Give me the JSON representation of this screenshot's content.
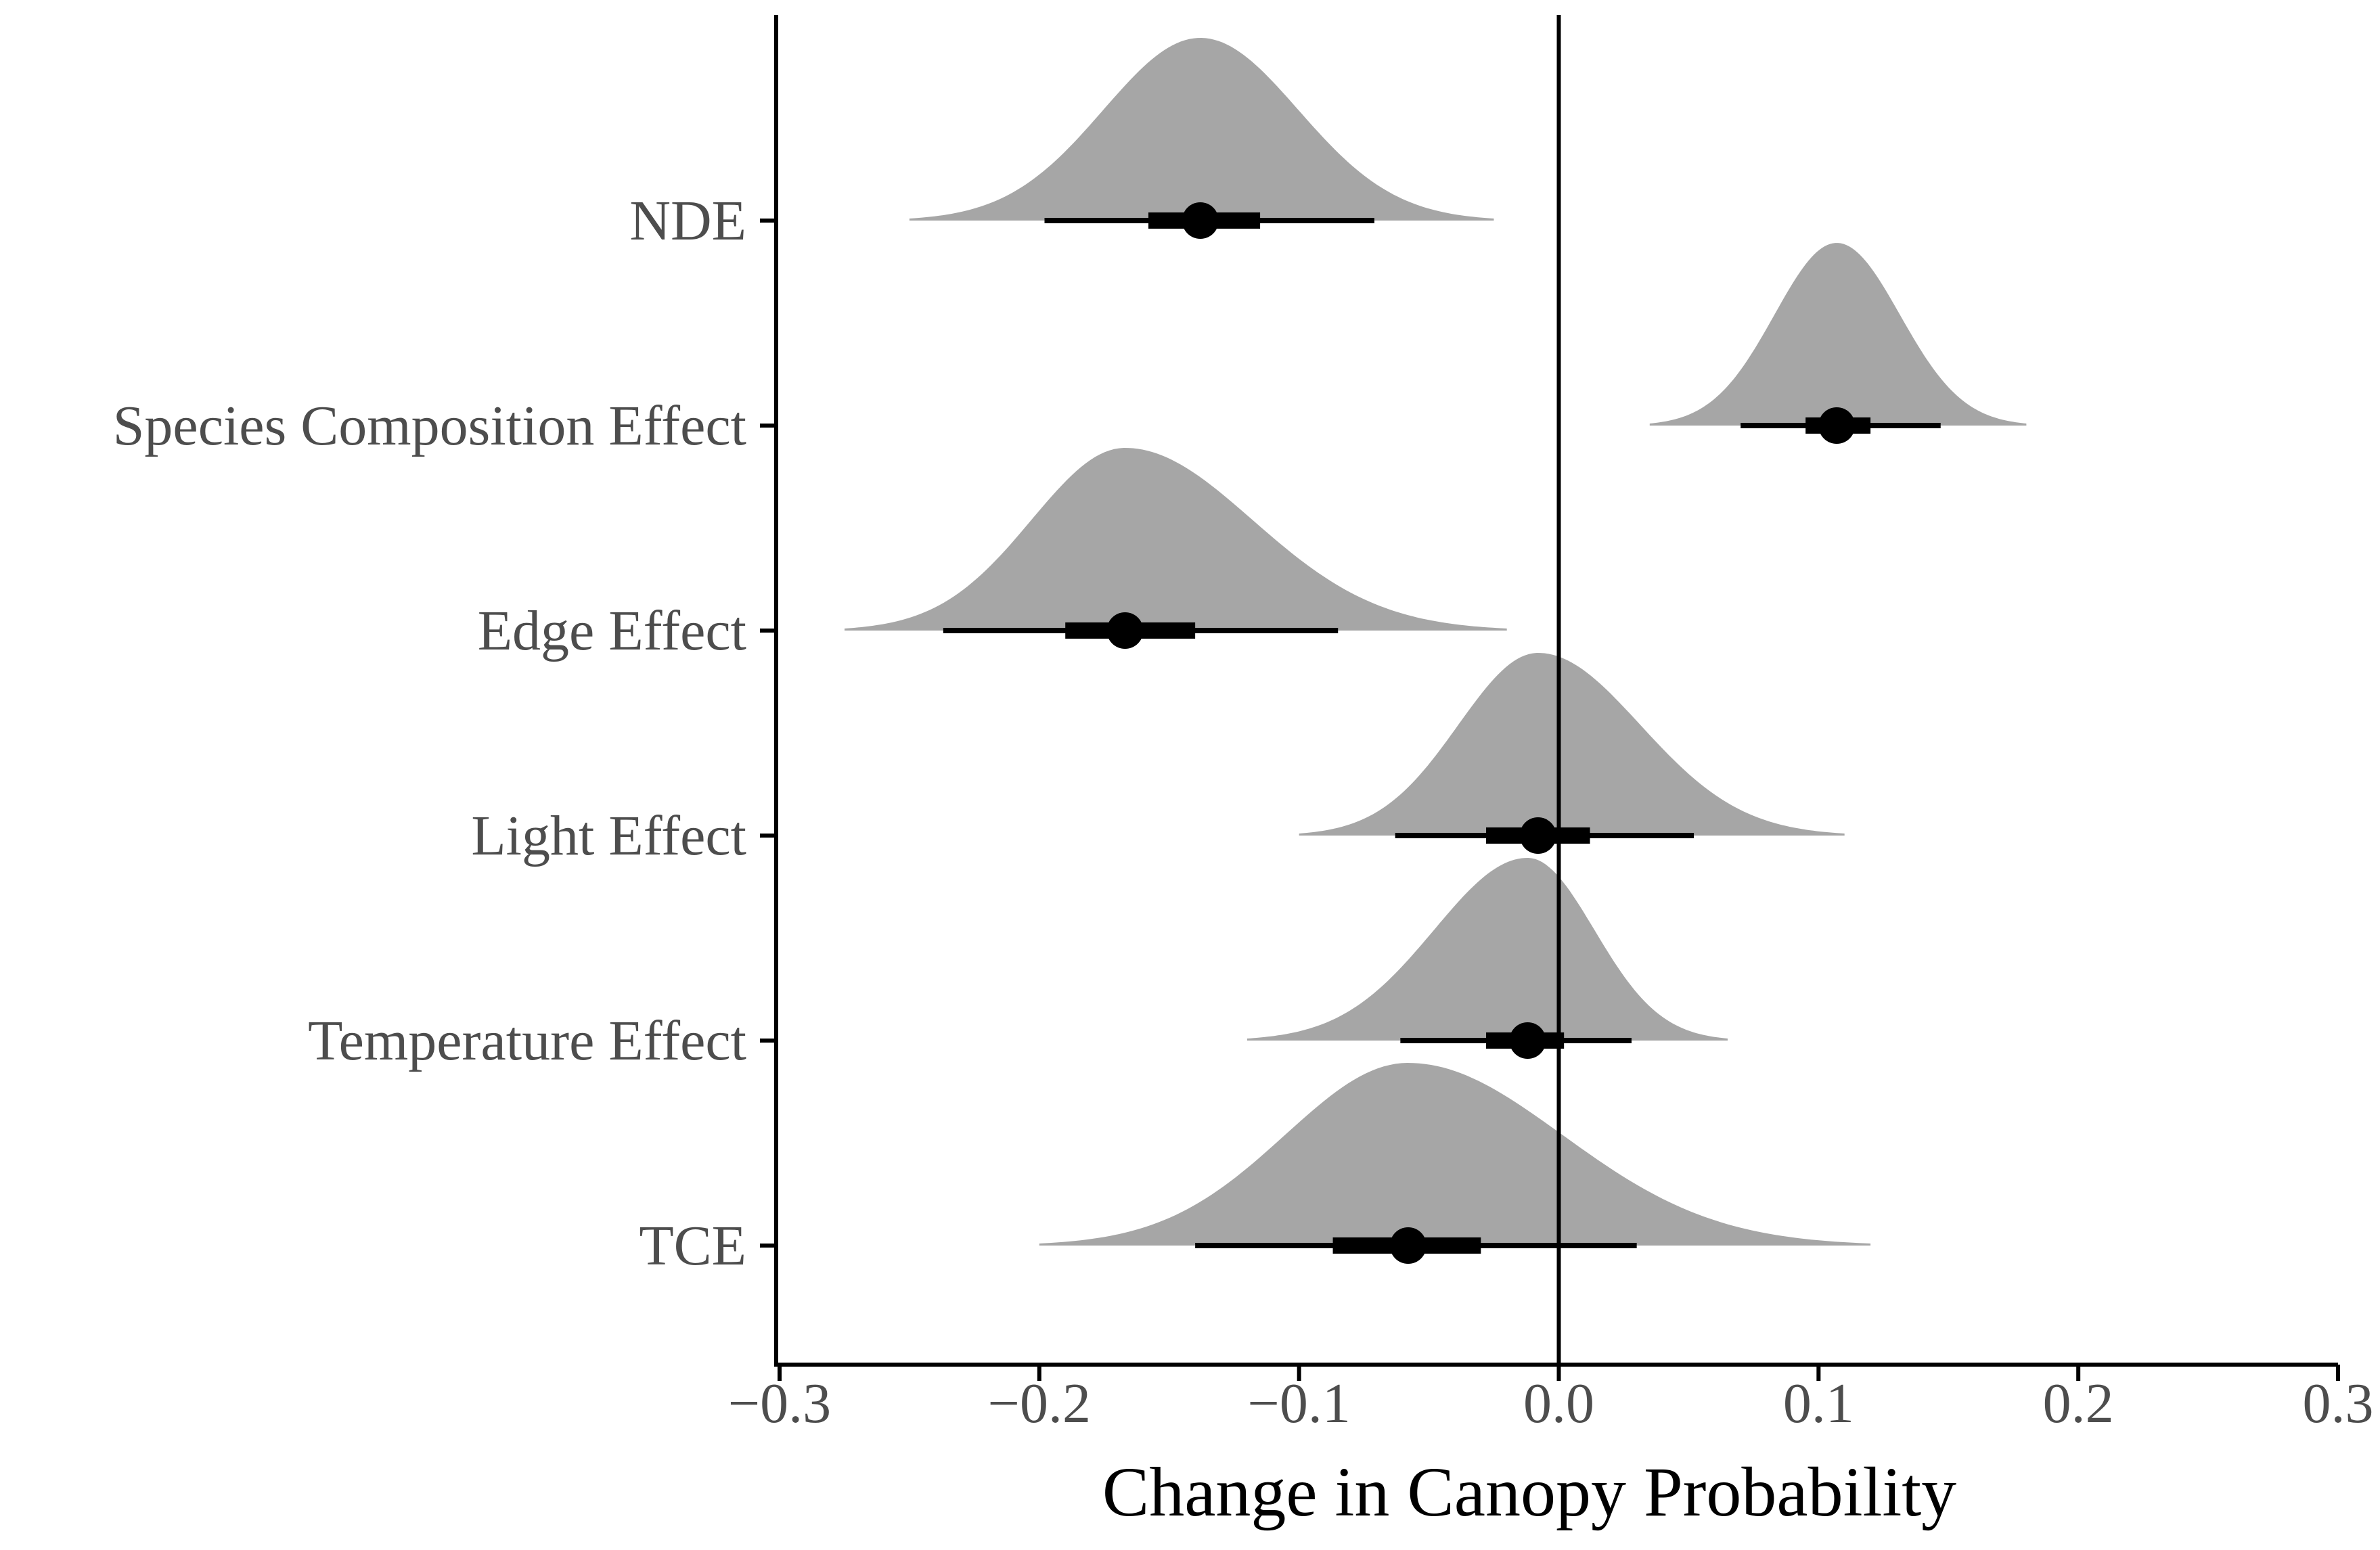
{
  "chart_data": {
    "type": "halfeye",
    "title": "",
    "xlabel": "Change in Canopy Probability",
    "ylabel": "",
    "xlim": [
      -0.3,
      0.3
    ],
    "x_ticks": [
      -0.3,
      -0.2,
      -0.1,
      0.0,
      0.1,
      0.2,
      0.3
    ],
    "x_tick_labels": [
      "−0.3",
      "−0.2",
      "−0.1",
      "0.0",
      "0.1",
      "0.2",
      "0.3"
    ],
    "reference_line": 0.0,
    "colors": {
      "density": "#a6a6a6",
      "interval": "#000000",
      "axis": "#000000",
      "tick_text": "#4d4d4d"
    },
    "series": [
      {
        "name": "NDE",
        "median": -0.138,
        "interval_66": [
          -0.158,
          -0.115
        ],
        "interval_95": [
          -0.198,
          -0.071
        ],
        "support": [
          -0.25,
          -0.025
        ]
      },
      {
        "name": "Species Composition Effect",
        "median": 0.107,
        "interval_66": [
          0.095,
          0.12
        ],
        "interval_95": [
          0.07,
          0.147
        ],
        "support": [
          0.035,
          0.18
        ]
      },
      {
        "name": "Edge Effect",
        "median": -0.167,
        "interval_66": [
          -0.19,
          -0.14
        ],
        "interval_95": [
          -0.237,
          -0.085
        ],
        "support": [
          -0.275,
          -0.02
        ]
      },
      {
        "name": "Light Effect",
        "median": -0.008,
        "interval_66": [
          -0.028,
          0.012
        ],
        "interval_95": [
          -0.063,
          0.052
        ],
        "support": [
          -0.1,
          0.11
        ]
      },
      {
        "name": "Temperature Effect",
        "median": -0.012,
        "interval_66": [
          -0.028,
          0.002
        ],
        "interval_95": [
          -0.061,
          0.028
        ],
        "support": [
          -0.12,
          0.065
        ]
      },
      {
        "name": "TCE",
        "median": -0.058,
        "interval_66": [
          -0.087,
          -0.03
        ],
        "interval_95": [
          -0.14,
          0.03
        ],
        "support": [
          -0.2,
          0.12
        ]
      }
    ]
  }
}
